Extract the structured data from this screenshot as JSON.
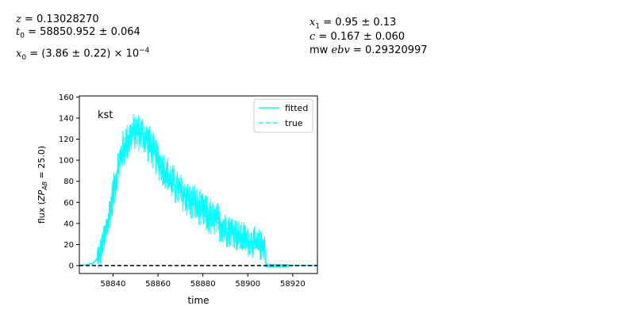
{
  "params": {
    "z_value": "0.13028270",
    "t0_value": "58850.952 ± 0.064",
    "x0_mantissa": "(3.86 ± 0.22) × 10",
    "x0_exponent": "−4",
    "x1_value": "0.95 ± 0.13",
    "c_value": "0.167 ± 0.060",
    "mwebv_prefix": "mw",
    "mwebv_var": "ebv",
    "mwebv_value": "0.29320997"
  },
  "chart_data": {
    "type": "line",
    "band_label": "kst",
    "xlabel": "time",
    "ylabel_prefix": "flux (",
    "ylabel_var": "ZP",
    "ylabel_sub": "AB",
    "ylabel_suffix": " = 25.0)",
    "xlim": [
      58825,
      58931
    ],
    "ylim": [
      -7.5,
      161
    ],
    "xticks": [
      58840,
      58860,
      58880,
      58900,
      58920
    ],
    "yticks": [
      0,
      20,
      40,
      60,
      80,
      100,
      120,
      140,
      160
    ],
    "legend": {
      "position": "top-right",
      "entries": [
        "fitted",
        "true"
      ]
    },
    "series_color": "#00ffff",
    "zero_line": {
      "y": 0,
      "style": "dashed",
      "color": "#000000"
    },
    "series": [
      {
        "name": "fitted",
        "style": "solid",
        "x": [
          58825,
          58831,
          58834,
          58836,
          58838,
          58840,
          58842,
          58844,
          58846,
          58848,
          58850,
          58852,
          58854,
          58856,
          58858,
          58860,
          58863,
          58866,
          58870,
          58874,
          58878,
          58882,
          58886,
          58890,
          58894,
          58898,
          58902,
          58906,
          58907.5,
          58908,
          58910,
          58920,
          58931
        ],
        "y": [
          0,
          2,
          10,
          25,
          45,
          68,
          90,
          108,
          118,
          124,
          127,
          126,
          122,
          116,
          108,
          100,
          90,
          80,
          70,
          62,
          55,
          48,
          42,
          36,
          31,
          26,
          22,
          19,
          18,
          2,
          0,
          0,
          0
        ]
      },
      {
        "name": "true",
        "style": "dashed",
        "x": [
          58825,
          58831,
          58834,
          58836,
          58838,
          58840,
          58842,
          58844,
          58846,
          58848,
          58850,
          58852,
          58854,
          58856,
          58858,
          58860,
          58863,
          58866,
          58870,
          58874,
          58878,
          58882,
          58886,
          58890,
          58894,
          58898,
          58902,
          58906,
          58907.5,
          58908,
          58910,
          58920,
          58931
        ],
        "y": [
          0,
          2,
          10,
          25,
          45,
          68,
          90,
          108,
          118,
          124,
          127,
          126,
          122,
          116,
          108,
          100,
          90,
          80,
          70,
          62,
          55,
          48,
          42,
          36,
          31,
          26,
          22,
          19,
          18,
          2,
          0,
          0,
          0
        ]
      }
    ],
    "observations": {
      "x_start": 58833,
      "x_end": 58907.5,
      "approx_count": 480,
      "scatter": 12,
      "after_cutoff": {
        "x_start": 58908,
        "x_end": 58918,
        "y": 0
      }
    }
  }
}
